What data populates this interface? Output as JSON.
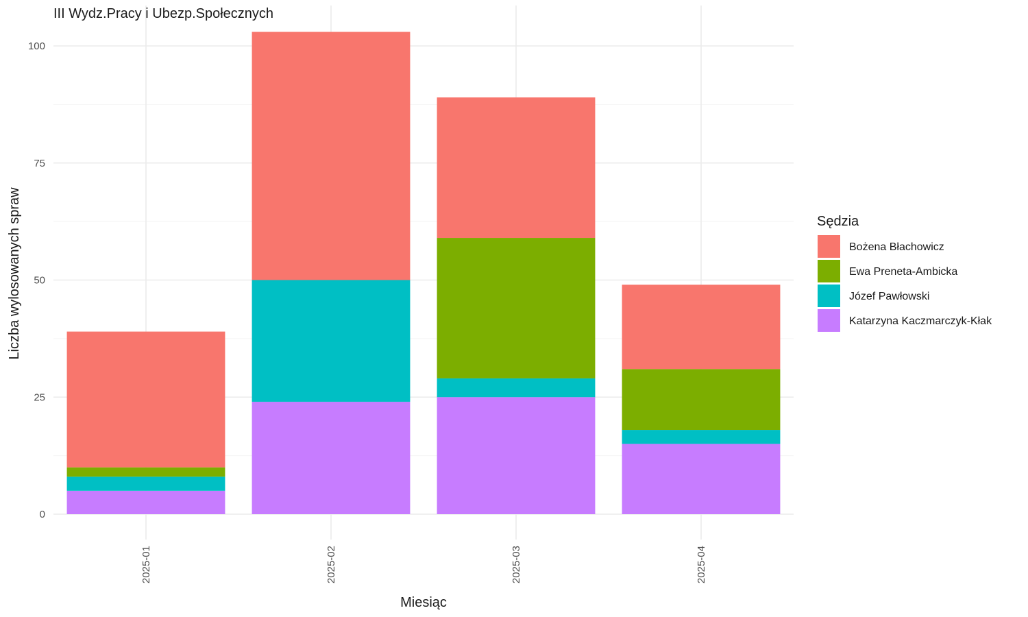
{
  "chart_data": {
    "type": "bar",
    "stacked": true,
    "title": "III Wydz.Pracy i Ubezp.Społecznych",
    "xlabel": "Miesiąc",
    "ylabel": "Liczba wylosowanych spraw",
    "categories": [
      "2025-01",
      "2025-02",
      "2025-03",
      "2025-04"
    ],
    "y_ticks": [
      0,
      25,
      50,
      75,
      100
    ],
    "ylim": [
      0,
      103
    ],
    "grid": true,
    "legend": {
      "title": "Sędzia",
      "position": "right"
    },
    "stack_order_bottom_to_top": [
      "Katarzyna Kaczmarczyk-Kłak",
      "Józef Pawłowski",
      "Ewa Preneta-Ambicka",
      "Bożena Błachowicz"
    ],
    "series": [
      {
        "name": "Bożena Błachowicz",
        "color": "#F8766D",
        "values": [
          29,
          53,
          30,
          18
        ]
      },
      {
        "name": "Ewa Preneta-Ambicka",
        "color": "#7CAE00",
        "values": [
          2,
          0,
          30,
          13
        ]
      },
      {
        "name": "Józef Pawłowski",
        "color": "#00BFC4",
        "values": [
          3,
          26,
          4,
          3
        ]
      },
      {
        "name": "Katarzyna Kaczmarczyk-Kłak",
        "color": "#C77CFF",
        "values": [
          5,
          24,
          25,
          15
        ]
      }
    ]
  }
}
